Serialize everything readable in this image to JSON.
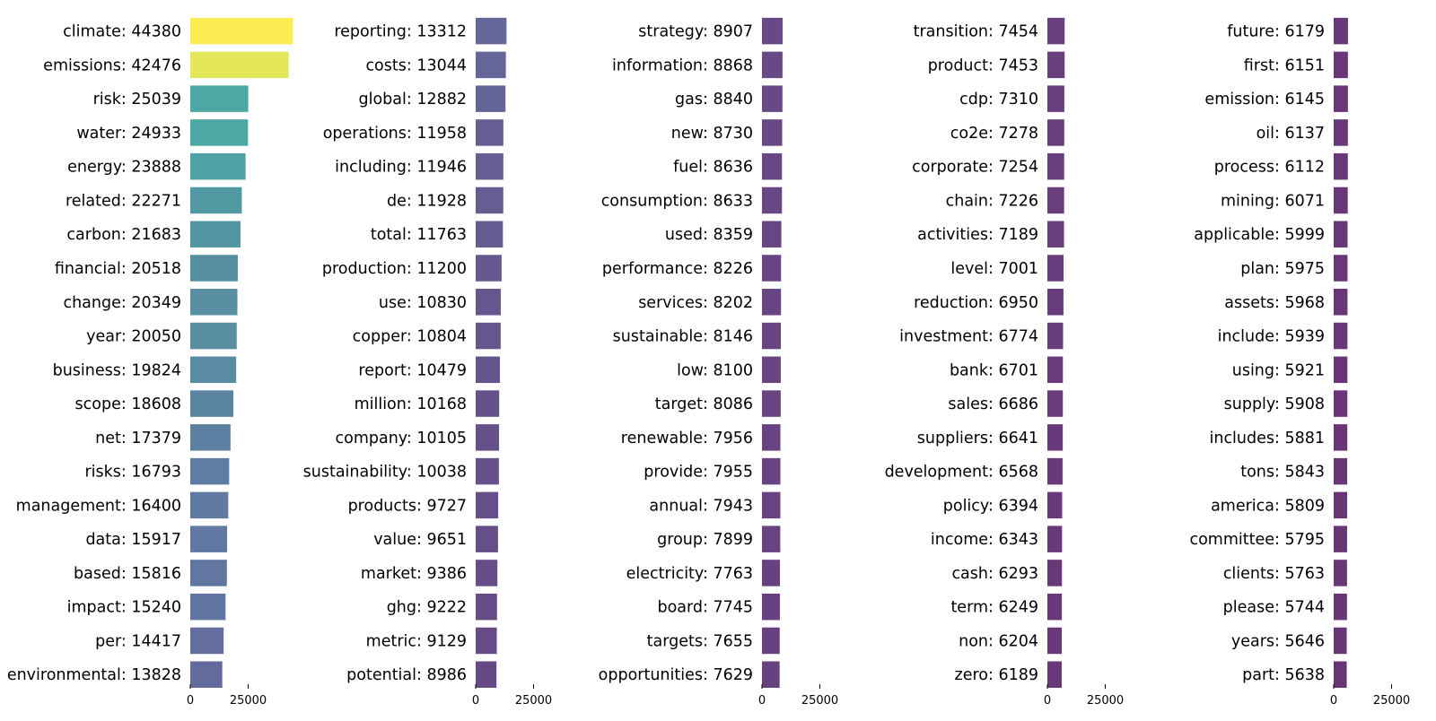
{
  "chart_data": {
    "type": "bar",
    "orientation": "horizontal",
    "xlim": [
      0,
      45000
    ],
    "x_ticks": [
      0,
      25000
    ],
    "x_tick_labels": [
      "0",
      "25000"
    ],
    "grid": false,
    "colormap": "viridis",
    "panels": [
      {
        "categories": [
          "climate",
          "emissions",
          "risk",
          "water",
          "energy",
          "related",
          "carbon",
          "financial",
          "change",
          "year",
          "business",
          "scope",
          "net",
          "risks",
          "management",
          "data",
          "based",
          "impact",
          "per",
          "environmental"
        ],
        "values": [
          44380,
          42476,
          25039,
          24933,
          23888,
          22271,
          21683,
          20518,
          20349,
          20050,
          19824,
          18608,
          17379,
          16793,
          16400,
          15917,
          15816,
          15240,
          14417,
          13828
        ],
        "labels": [
          "climate: 44380",
          "emissions: 42476",
          "risk: 25039",
          "water: 24933",
          "energy: 23888",
          "related: 22271",
          "carbon: 21683",
          "financial: 20518",
          "change: 20349",
          "year: 20050",
          "business: 19824",
          "scope: 18608",
          "net: 17379",
          "risks: 16793",
          "management: 16400",
          "data: 15917",
          "based: 15816",
          "impact: 15240",
          "per: 14417",
          "environmental: 13828"
        ]
      },
      {
        "categories": [
          "reporting",
          "costs",
          "global",
          "operations",
          "including",
          "de",
          "total",
          "production",
          "use",
          "copper",
          "report",
          "million",
          "company",
          "sustainability",
          "products",
          "value",
          "market",
          "ghg",
          "metric",
          "potential"
        ],
        "values": [
          13312,
          13044,
          12882,
          11958,
          11946,
          11928,
          11763,
          11200,
          10830,
          10804,
          10479,
          10168,
          10105,
          10038,
          9727,
          9651,
          9386,
          9222,
          9129,
          8986
        ],
        "labels": [
          "reporting: 13312",
          "costs: 13044",
          "global: 12882",
          "operations: 11958",
          "including: 11946",
          "de: 11928",
          "total: 11763",
          "production: 11200",
          "use: 10830",
          "copper: 10804",
          "report: 10479",
          "million: 10168",
          "company: 10105",
          "sustainability: 10038",
          "products: 9727",
          "value: 9651",
          "market: 9386",
          "ghg: 9222",
          "metric: 9129",
          "potential: 8986"
        ]
      },
      {
        "categories": [
          "strategy",
          "information",
          "gas",
          "new",
          "fuel",
          "consumption",
          "used",
          "performance",
          "services",
          "sustainable",
          "low",
          "target",
          "renewable",
          "provide",
          "annual",
          "group",
          "electricity",
          "board",
          "targets",
          "opportunities"
        ],
        "values": [
          8907,
          8868,
          8840,
          8730,
          8636,
          8633,
          8359,
          8226,
          8202,
          8146,
          8100,
          8086,
          7956,
          7955,
          7943,
          7899,
          7763,
          7745,
          7655,
          7629
        ],
        "labels": [
          "strategy: 8907",
          "information: 8868",
          "gas: 8840",
          "new: 8730",
          "fuel: 8636",
          "consumption: 8633",
          "used: 8359",
          "performance: 8226",
          "services: 8202",
          "sustainable: 8146",
          "low: 8100",
          "target: 8086",
          "renewable: 7956",
          "provide: 7955",
          "annual: 7943",
          "group: 7899",
          "electricity: 7763",
          "board: 7745",
          "targets: 7655",
          "opportunities: 7629"
        ]
      },
      {
        "categories": [
          "transition",
          "product",
          "cdp",
          "co2e",
          "corporate",
          "chain",
          "activities",
          "level",
          "reduction",
          "investment",
          "bank",
          "sales",
          "suppliers",
          "development",
          "policy",
          "income",
          "cash",
          "term",
          "non",
          "zero"
        ],
        "values": [
          7454,
          7453,
          7310,
          7278,
          7254,
          7226,
          7189,
          7001,
          6950,
          6774,
          6701,
          6686,
          6641,
          6568,
          6394,
          6343,
          6293,
          6249,
          6204,
          6189
        ],
        "labels": [
          "transition: 7454",
          "product: 7453",
          "cdp: 7310",
          "co2e: 7278",
          "corporate: 7254",
          "chain: 7226",
          "activities: 7189",
          "level: 7001",
          "reduction: 6950",
          "investment: 6774",
          "bank: 6701",
          "sales: 6686",
          "suppliers: 6641",
          "development: 6568",
          "policy: 6394",
          "income: 6343",
          "cash: 6293",
          "term: 6249",
          "non: 6204",
          "zero: 6189"
        ]
      },
      {
        "categories": [
          "future",
          "first",
          "emission",
          "oil",
          "process",
          "mining",
          "applicable",
          "plan",
          "assets",
          "include",
          "using",
          "supply",
          "includes",
          "tons",
          "america",
          "committee",
          "clients",
          "please",
          "years",
          "part"
        ],
        "values": [
          6179,
          6151,
          6145,
          6137,
          6112,
          6071,
          5999,
          5975,
          5968,
          5939,
          5921,
          5908,
          5881,
          5843,
          5809,
          5795,
          5763,
          5744,
          5646,
          5638
        ],
        "labels": [
          "future: 6179",
          "first: 6151",
          "emission: 6145",
          "oil: 6137",
          "process: 6112",
          "mining: 6071",
          "applicable: 5999",
          "plan: 5975",
          "assets: 5968",
          "include: 5939",
          "using: 5921",
          "supply: 5908",
          "includes: 5881",
          "tons: 5843",
          "america: 5809",
          "committee: 5795",
          "clients: 5763",
          "please: 5744",
          "years: 5646",
          "part: 5638"
        ]
      }
    ]
  }
}
